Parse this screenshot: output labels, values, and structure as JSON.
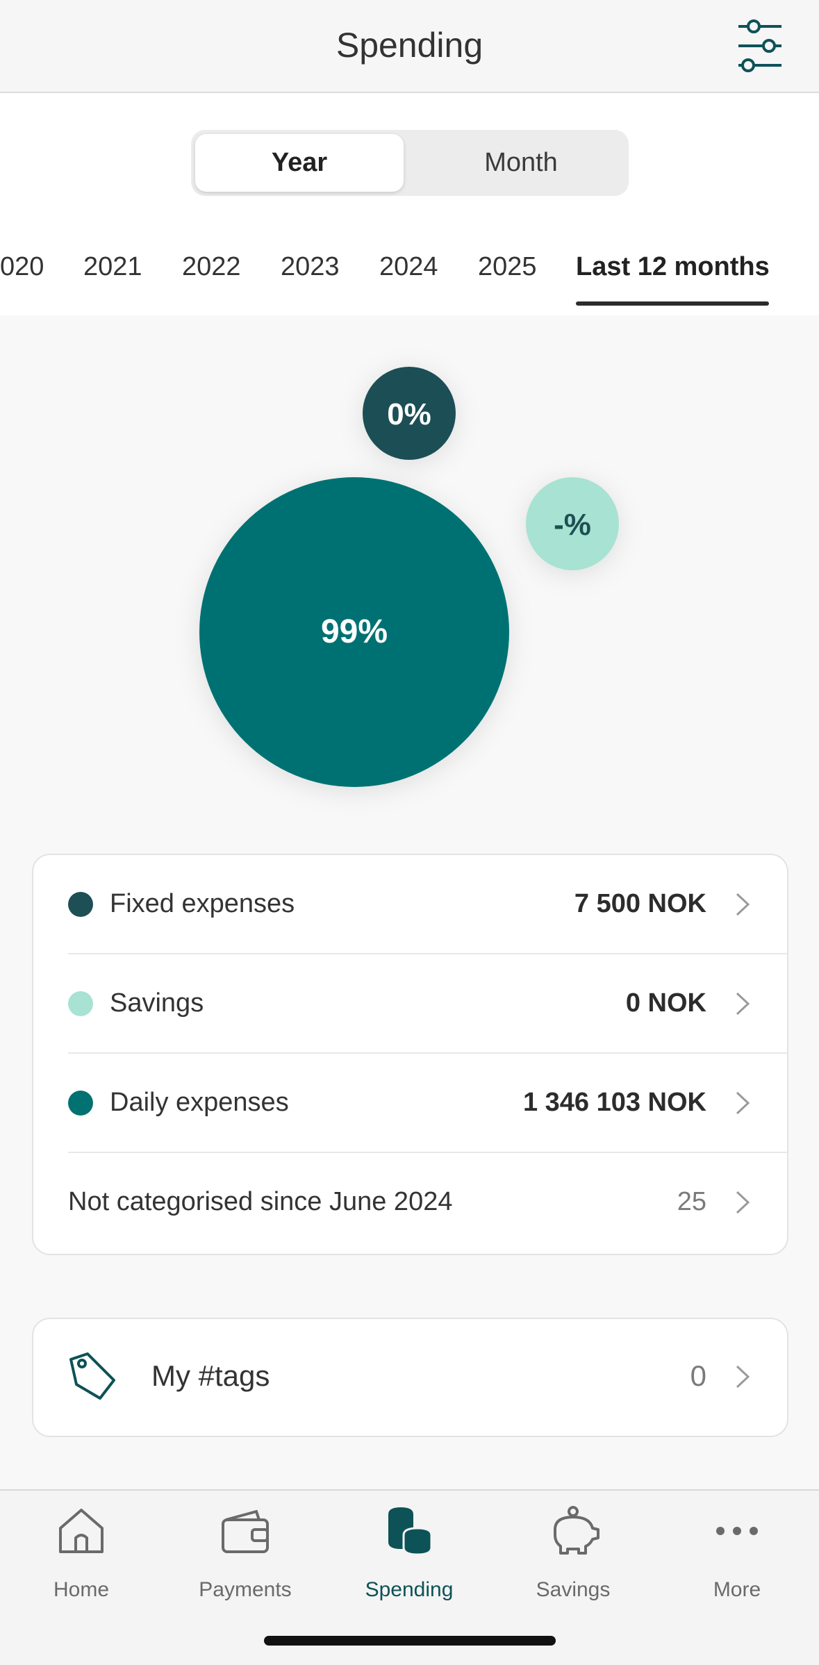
{
  "header": {
    "title": "Spending",
    "filter_icon": "sliders-icon"
  },
  "segment": {
    "year_label": "Year",
    "month_label": "Month",
    "selected": "Year"
  },
  "year_tabs": [
    {
      "label": "020"
    },
    {
      "label": "2021"
    },
    {
      "label": "2022"
    },
    {
      "label": "2023"
    },
    {
      "label": "2024"
    },
    {
      "label": "2025"
    },
    {
      "label": "Last 12 months",
      "active": true
    }
  ],
  "chart_data": {
    "type": "bubble",
    "bubbles": [
      {
        "category": "Fixed expenses",
        "label": "0%",
        "color": "#1d4f54"
      },
      {
        "category": "Savings",
        "label": "-%",
        "color": "#a8e2d2"
      },
      {
        "category": "Daily expenses",
        "label": "99%",
        "color": "#027172"
      }
    ]
  },
  "categories": [
    {
      "name": "Fixed expenses",
      "amount": "7 500 NOK",
      "color": "#1d4f54"
    },
    {
      "name": "Savings",
      "amount": "0 NOK",
      "color": "#a8e2d2"
    },
    {
      "name": "Daily expenses",
      "amount": "1 346 103 NOK",
      "color": "#027172"
    }
  ],
  "uncategorised": {
    "label": "Not categorised since June 2024",
    "count": "25"
  },
  "tags": {
    "label": "My #tags",
    "count": "0",
    "icon": "tag-icon"
  },
  "nav": [
    {
      "label": "Home",
      "icon": "home-icon"
    },
    {
      "label": "Payments",
      "icon": "wallet-icon"
    },
    {
      "label": "Spending",
      "icon": "coins-icon",
      "active": true
    },
    {
      "label": "Savings",
      "icon": "piggy-bank-icon"
    },
    {
      "label": "More",
      "icon": "more-dots-icon"
    }
  ],
  "colors": {
    "accent": "#0d5257",
    "teal": "#027172",
    "dark_teal": "#1d4f54",
    "mint": "#a8e2d2"
  }
}
